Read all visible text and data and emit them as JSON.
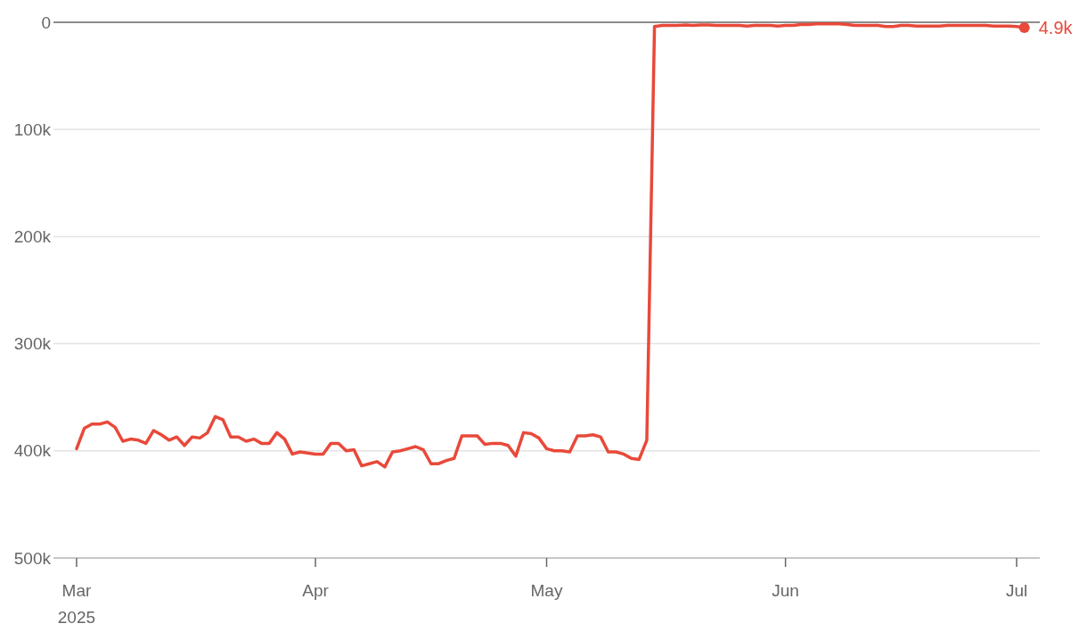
{
  "chart_data": {
    "type": "line",
    "x": [
      "2025-03-01",
      "2025-03-02",
      "2025-03-03",
      "2025-03-04",
      "2025-03-05",
      "2025-03-06",
      "2025-03-07",
      "2025-03-08",
      "2025-03-09",
      "2025-03-10",
      "2025-03-11",
      "2025-03-12",
      "2025-03-13",
      "2025-03-14",
      "2025-03-15",
      "2025-03-16",
      "2025-03-17",
      "2025-03-18",
      "2025-03-19",
      "2025-03-20",
      "2025-03-21",
      "2025-03-22",
      "2025-03-23",
      "2025-03-24",
      "2025-03-25",
      "2025-03-26",
      "2025-03-27",
      "2025-03-28",
      "2025-03-29",
      "2025-03-30",
      "2025-03-31",
      "2025-04-01",
      "2025-04-02",
      "2025-04-03",
      "2025-04-04",
      "2025-04-05",
      "2025-04-06",
      "2025-04-07",
      "2025-04-08",
      "2025-04-09",
      "2025-04-10",
      "2025-04-11",
      "2025-04-12",
      "2025-04-13",
      "2025-04-14",
      "2025-04-15",
      "2025-04-16",
      "2025-04-17",
      "2025-04-18",
      "2025-04-19",
      "2025-04-20",
      "2025-04-21",
      "2025-04-22",
      "2025-04-23",
      "2025-04-24",
      "2025-04-25",
      "2025-04-26",
      "2025-04-27",
      "2025-04-28",
      "2025-04-29",
      "2025-04-30",
      "2025-05-01",
      "2025-05-02",
      "2025-05-03",
      "2025-05-04",
      "2025-05-05",
      "2025-05-06",
      "2025-05-07",
      "2025-05-08",
      "2025-05-09",
      "2025-05-10",
      "2025-05-11",
      "2025-05-12",
      "2025-05-13",
      "2025-05-14",
      "2025-05-15",
      "2025-05-16",
      "2025-05-17",
      "2025-05-18",
      "2025-05-19",
      "2025-05-20",
      "2025-05-21",
      "2025-05-22",
      "2025-05-23",
      "2025-05-24",
      "2025-05-25",
      "2025-05-26",
      "2025-05-27",
      "2025-05-28",
      "2025-05-29",
      "2025-05-30",
      "2025-05-31",
      "2025-06-01",
      "2025-06-02",
      "2025-06-03",
      "2025-06-04",
      "2025-06-05",
      "2025-06-06",
      "2025-06-07",
      "2025-06-08",
      "2025-06-09",
      "2025-06-10",
      "2025-06-11",
      "2025-06-12",
      "2025-06-13",
      "2025-06-14",
      "2025-06-15",
      "2025-06-16",
      "2025-06-17",
      "2025-06-18",
      "2025-06-19",
      "2025-06-20",
      "2025-06-21",
      "2025-06-22",
      "2025-06-23",
      "2025-06-24",
      "2025-06-25",
      "2025-06-26",
      "2025-06-27",
      "2025-06-28",
      "2025-06-29",
      "2025-06-30",
      "2025-07-01",
      "2025-07-02"
    ],
    "series": [
      {
        "color": "#e8493a",
        "values": [
          398,
          379,
          375,
          375,
          373,
          378,
          391,
          389,
          390,
          393,
          381,
          385,
          390,
          387,
          395,
          387,
          388,
          383,
          368,
          371,
          387,
          387,
          391,
          389,
          393,
          393,
          383,
          389,
          403,
          401,
          402,
          403,
          403,
          393,
          393,
          400,
          399,
          414,
          412,
          410,
          415,
          401,
          400,
          398,
          396,
          399,
          412,
          412,
          409,
          407,
          386,
          386,
          386,
          394,
          393,
          393,
          395,
          405,
          383,
          384,
          388,
          398,
          400,
          400,
          401,
          386,
          386,
          385,
          387,
          401,
          401,
          403,
          407,
          408,
          390,
          4,
          3,
          3,
          3,
          2.5,
          3,
          2.5,
          2.5,
          3,
          3,
          3,
          3,
          3.5,
          3,
          3,
          3,
          3.5,
          3,
          3,
          2,
          2,
          1.5,
          1.5,
          1.5,
          1.5,
          2,
          3,
          3,
          3,
          3,
          4,
          4,
          3,
          3,
          3.5,
          3.5,
          3.5,
          3.5,
          3,
          3,
          3,
          3,
          3,
          3,
          3.5,
          3.5,
          3.5,
          4,
          4.9
        ]
      }
    ],
    "xlim": [
      "2025-02-26",
      "2025-07-04"
    ],
    "xticks": [
      {
        "value": "2025-03-01",
        "label": "Mar\n2025"
      },
      {
        "value": "2025-04-01",
        "label": "Apr"
      },
      {
        "value": "2025-05-01",
        "label": "May"
      },
      {
        "value": "2025-06-01",
        "label": "Jun"
      },
      {
        "value": "2025-07-01",
        "label": "Jul"
      }
    ],
    "ylim": [
      500,
      0
    ],
    "yticks": [
      0,
      {
        "value": 100,
        "label": "100k"
      },
      {
        "value": 200,
        "label": "200k"
      },
      {
        "value": 300,
        "label": "300k"
      },
      {
        "value": 400,
        "label": "400k"
      },
      {
        "value": 500,
        "label": "500k"
      }
    ],
    "grid": "y",
    "annotations": [
      {
        "text": "4.9k",
        "x": "2025-07-02",
        "y": 4.9
      }
    ]
  }
}
